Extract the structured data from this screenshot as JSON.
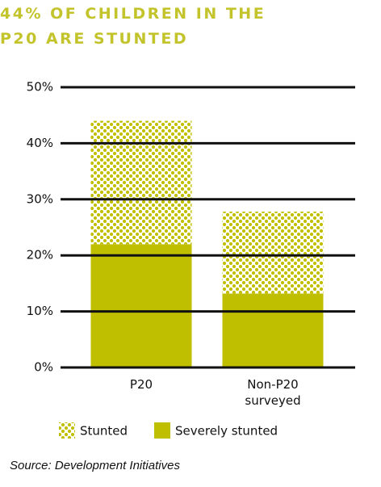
{
  "chart_data": {
    "type": "stacked_bar",
    "title": "44% OF CHILDREN IN THE P20 ARE STUNTED",
    "categories": [
      "P20",
      "Non-P20 surveyed"
    ],
    "series": [
      {
        "name": "Stunted",
        "color": "#bfbf00",
        "pattern": "dots",
        "values": [
          22,
          14.6
        ]
      },
      {
        "name": "Severely stunted",
        "color": "#bfbf00",
        "values": [
          22,
          13.2
        ]
      }
    ],
    "ylim": [
      0,
      50
    ],
    "yticks": [
      {
        "value": 0,
        "label": "0%"
      },
      {
        "value": 10,
        "label": "10%"
      },
      {
        "value": 20,
        "label": "20%"
      },
      {
        "value": 30,
        "label": "30%"
      },
      {
        "value": 40,
        "label": "40%"
      },
      {
        "value": 50,
        "label": "50%"
      }
    ],
    "grid": true,
    "source": "Source: Development Initiatives"
  }
}
